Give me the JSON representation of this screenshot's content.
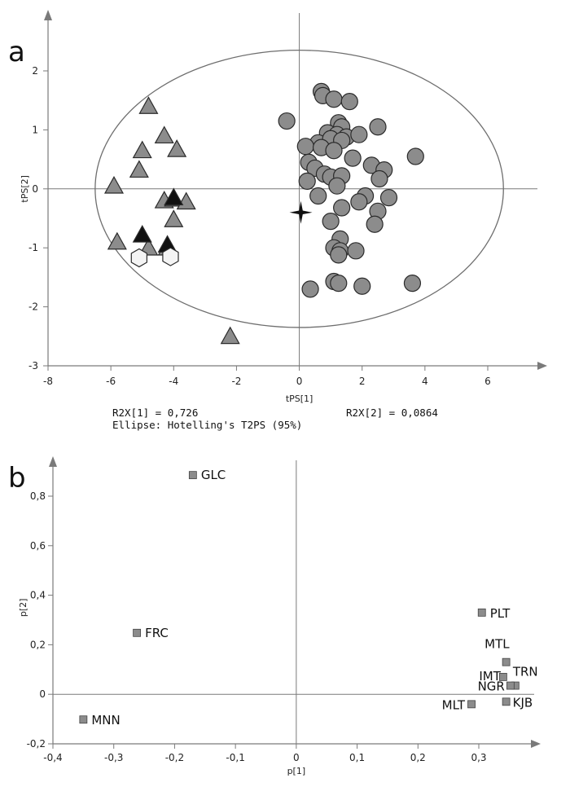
{
  "panel_a": {
    "letter": "a",
    "stats": {
      "r2x1": "R2X[1] = 0,726",
      "r2x2": "R2X[2] = 0,0864",
      "ellipse": "Ellipse: Hotelling's T2PS (95%)"
    }
  },
  "panel_b": {
    "letter": "b"
  },
  "colors": {
    "marker_fill": "#8c8c8c",
    "marker_stroke": "#2a2a2a",
    "dark_fill": "#111111",
    "white_fill": "#f4f4f4",
    "axis": "#7a7a7a",
    "ellipse": "#6e6e6e"
  },
  "chart_data": [
    {
      "type": "scatter",
      "title": "",
      "xlabel": "tPS[1]",
      "ylabel": "tPS[2]",
      "xlim": [
        -8,
        8
      ],
      "ylim": [
        -3,
        3
      ],
      "xticks": [
        "-8",
        "-6",
        "-4",
        "-2",
        "0",
        "2",
        "4",
        "6"
      ],
      "yticks": [
        "-3",
        "-2",
        "-1",
        "0",
        "1",
        "2"
      ],
      "grid": false,
      "ellipse": {
        "center": [
          0,
          0
        ],
        "rx": 6.5,
        "ry": 2.35,
        "label": "Hotelling's T2PS (95%)"
      },
      "series": [
        {
          "marker": "triangle-gray",
          "points": [
            [
              -4.8,
              1.4
            ],
            [
              -4.3,
              0.9
            ],
            [
              -5.0,
              0.65
            ],
            [
              -3.9,
              0.67
            ],
            [
              -5.1,
              0.32
            ],
            [
              -5.9,
              0.05
            ],
            [
              -4.3,
              -0.2
            ],
            [
              -4.0,
              -0.17
            ],
            [
              -3.6,
              -0.22
            ],
            [
              -4.0,
              -0.52
            ],
            [
              -5.8,
              -0.9
            ],
            [
              -4.8,
              -1.0
            ],
            [
              -4.2,
              -1.0
            ],
            [
              -2.2,
              -2.5
            ]
          ]
        },
        {
          "marker": "triangle-black",
          "points": [
            [
              -5.0,
              -0.78
            ],
            [
              -4.2,
              -0.95
            ],
            [
              -4.0,
              -0.15
            ]
          ]
        },
        {
          "marker": "hexagon-white",
          "points": [
            [
              -5.1,
              -1.17
            ],
            [
              -4.1,
              -1.15
            ]
          ]
        },
        {
          "marker": "star-black",
          "points": [
            [
              0.05,
              -0.4
            ]
          ]
        },
        {
          "marker": "circle-gray",
          "points": [
            [
              0.7,
              1.65
            ],
            [
              0.75,
              1.58
            ],
            [
              1.1,
              1.52
            ],
            [
              1.6,
              1.48
            ],
            [
              -0.4,
              1.15
            ],
            [
              1.25,
              1.12
            ],
            [
              1.35,
              1.05
            ],
            [
              2.5,
              1.05
            ],
            [
              0.9,
              0.95
            ],
            [
              1.2,
              0.92
            ],
            [
              1.5,
              0.88
            ],
            [
              1.9,
              0.92
            ],
            [
              0.6,
              0.78
            ],
            [
              1.0,
              0.85
            ],
            [
              1.35,
              0.82
            ],
            [
              0.2,
              0.72
            ],
            [
              0.7,
              0.7
            ],
            [
              1.1,
              0.65
            ],
            [
              3.7,
              0.55
            ],
            [
              1.7,
              0.52
            ],
            [
              0.3,
              0.45
            ],
            [
              2.3,
              0.4
            ],
            [
              0.5,
              0.35
            ],
            [
              2.7,
              0.32
            ],
            [
              0.8,
              0.25
            ],
            [
              1.0,
              0.2
            ],
            [
              1.35,
              0.22
            ],
            [
              0.25,
              0.13
            ],
            [
              2.55,
              0.17
            ],
            [
              1.2,
              0.05
            ],
            [
              2.1,
              -0.12
            ],
            [
              2.85,
              -0.15
            ],
            [
              0.6,
              -0.12
            ],
            [
              1.9,
              -0.22
            ],
            [
              2.5,
              -0.38
            ],
            [
              1.35,
              -0.32
            ],
            [
              1.0,
              -0.55
            ],
            [
              2.4,
              -0.6
            ],
            [
              1.3,
              -0.85
            ],
            [
              1.1,
              -1.0
            ],
            [
              1.3,
              -1.05
            ],
            [
              1.8,
              -1.05
            ],
            [
              1.25,
              -1.12
            ],
            [
              1.1,
              -1.57
            ],
            [
              1.25,
              -1.6
            ],
            [
              2.0,
              -1.65
            ],
            [
              3.6,
              -1.6
            ],
            [
              0.35,
              -1.7
            ]
          ]
        }
      ]
    },
    {
      "type": "scatter",
      "title": "",
      "xlabel": "p[1]",
      "ylabel": "p[2]",
      "xlim": [
        -0.4,
        0.4
      ],
      "ylim": [
        -0.2,
        0.9
      ],
      "xticks": [
        "-0,4",
        "-0,3",
        "-0,2",
        "-0,1",
        "0",
        "0,1",
        "0,2",
        "0,3"
      ],
      "yticks": [
        "-0,2",
        "0",
        "0,2",
        "0,4",
        "0,6",
        "0,8"
      ],
      "grid": false,
      "points": [
        {
          "label": "GLC",
          "x": -0.17,
          "y": 0.885
        },
        {
          "label": "FRC",
          "x": -0.262,
          "y": 0.248
        },
        {
          "label": "MNN",
          "x": -0.35,
          "y": -0.102
        },
        {
          "label": "PLT",
          "x": 0.305,
          "y": 0.33
        },
        {
          "label": "MTL",
          "x": 0.345,
          "y": 0.13
        },
        {
          "label": "TRN",
          "x": 0.36,
          "y": 0.035
        },
        {
          "label": "IMT",
          "x": 0.34,
          "y": 0.07
        },
        {
          "label": "NGR",
          "x": 0.352,
          "y": 0.035
        },
        {
          "label": "MLT",
          "x": 0.288,
          "y": -0.04
        },
        {
          "label": "KJB",
          "x": 0.345,
          "y": -0.03
        }
      ]
    }
  ]
}
